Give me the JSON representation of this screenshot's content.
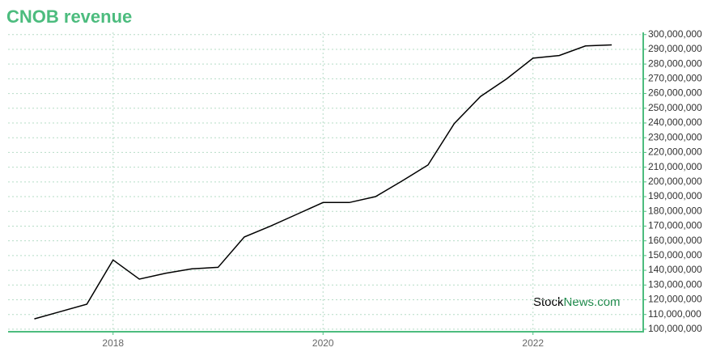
{
  "chart_data": {
    "type": "line",
    "title": "CNOB revenue",
    "x": [
      2017.25,
      2017.5,
      2017.75,
      2018.0,
      2018.25,
      2018.5,
      2018.75,
      2019.0,
      2019.25,
      2019.5,
      2019.75,
      2020.0,
      2020.25,
      2020.5,
      2020.75,
      2021.0,
      2021.25,
      2021.5,
      2021.75,
      2022.0,
      2022.25,
      2022.5,
      2022.75
    ],
    "values": [
      107000000,
      112000000,
      117000000,
      147000000,
      134000000,
      138000000,
      141000000,
      142000000,
      162600000,
      170000000,
      178000000,
      186000000,
      186000000,
      190000000,
      200500000,
      211500000,
      239600000,
      258000000,
      270000000,
      284000000,
      285800000,
      292300000,
      293000000
    ],
    "color": "#000000",
    "xlim": [
      2017.0,
      2023.05
    ],
    "xticks": [
      2018,
      2020,
      2022
    ],
    "ylim": [
      98300000,
      301500000
    ],
    "yticks": [
      {
        "value": 100000000,
        "label": "100,000,000"
      },
      {
        "value": 110000000,
        "label": "110,000,000"
      },
      {
        "value": 120000000,
        "label": "120,000,000"
      },
      {
        "value": 130000000,
        "label": "130,000,000"
      },
      {
        "value": 140000000,
        "label": "140,000,000"
      },
      {
        "value": 150000000,
        "label": "150,000,000"
      },
      {
        "value": 160000000,
        "label": "160,000,000"
      },
      {
        "value": 170000000,
        "label": "170,000,000"
      },
      {
        "value": 180000000,
        "label": "180,000,000"
      },
      {
        "value": 190000000,
        "label": "190,000,000"
      },
      {
        "value": 200000000,
        "label": "200,000,000"
      },
      {
        "value": 210000000,
        "label": "210,000,000"
      },
      {
        "value": 220000000,
        "label": "220,000,000"
      },
      {
        "value": 230000000,
        "label": "230,000,000"
      },
      {
        "value": 240000000,
        "label": "240,000,000"
      },
      {
        "value": 250000000,
        "label": "250,000,000"
      },
      {
        "value": 260000000,
        "label": "260,000,000"
      },
      {
        "value": 270000000,
        "label": "270,000,000"
      },
      {
        "value": 280000000,
        "label": "280,000,000"
      },
      {
        "value": 290000000,
        "label": "290,000,000"
      },
      {
        "value": 300000000,
        "label": "300,000,000"
      }
    ],
    "grid": true,
    "watermark": {
      "prefix": "Stock",
      "suffix": "News.com"
    }
  }
}
